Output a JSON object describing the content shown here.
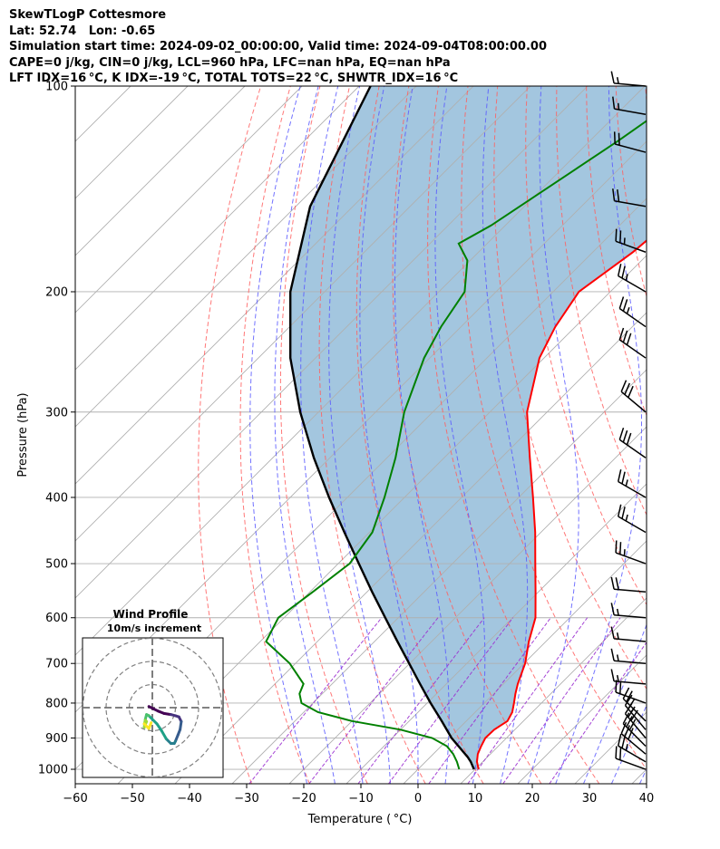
{
  "header": {
    "line1": "SkewTLogP Cottesmore",
    "line2": "Lat: 52.74   Lon: -0.65",
    "line3": "Simulation start time: 2024-09-02_00:00:00, Valid time: 2024-09-04T08:00:00.00",
    "line4": "CAPE=0 j/kg, CIN=0 j/kg, LCL=960 hPa, LFC=nan hPa, EQ=nan hPa",
    "line5": "LFT IDX=16 °C, K IDX=-19 °C, TOTAL TOTS=22 °C, SHWTR_IDX=16 °C"
  },
  "chart_data": {
    "type": "skewt-logp",
    "xlabel": "Temperature ( °C)",
    "ylabel": "Pressure (hPa)",
    "xlim": [
      -60,
      40
    ],
    "ylim": [
      1050,
      100
    ],
    "x_ticks": [
      -60,
      -50,
      -40,
      -30,
      -20,
      -10,
      0,
      10,
      20,
      30,
      40
    ],
    "x_tick_labels": [
      "−60",
      "−50",
      "−40",
      "−30",
      "−20",
      "−10",
      "0",
      "10",
      "20",
      "30",
      "40"
    ],
    "p_ticks": [
      1000,
      900,
      800,
      700,
      600,
      500,
      400,
      300,
      200,
      100
    ],
    "grid": true,
    "colors": {
      "temperature": "#ff0000",
      "dewpoint": "#008000",
      "parcel": "#000000",
      "cape_fill": "#a3c6df",
      "dry_adiabat": "#ff6060",
      "moist_adiabat": "#5a5aff",
      "mixing_ratio": "#9b30d0",
      "isotherm": "#b0b0b0",
      "grid": "#b0b0b0"
    },
    "temperature": {
      "p": [
        1000,
        975,
        950,
        925,
        900,
        875,
        850,
        825,
        800,
        775,
        750,
        700,
        650,
        600,
        550,
        500,
        450,
        400,
        350,
        300,
        250,
        225,
        200,
        175,
        150,
        140,
        130,
        120,
        110,
        100
      ],
      "t": [
        10.6,
        9.0,
        7.8,
        7.0,
        6.3,
        6.4,
        7.2,
        6.5,
        5.2,
        3.8,
        2.5,
        0.2,
        -3.0,
        -6.0,
        -10.5,
        -15.5,
        -21.0,
        -27.5,
        -35.0,
        -43.5,
        -50.8,
        -53.5,
        -55.5,
        -53.0,
        -51.5,
        -51.5,
        -50.0,
        -49.5,
        -51.0,
        -53.5
      ]
    },
    "dewpoint": {
      "p": [
        1000,
        975,
        950,
        925,
        900,
        875,
        850,
        825,
        800,
        775,
        750,
        700,
        650,
        600,
        550,
        500,
        450,
        400,
        350,
        300,
        250,
        225,
        200,
        180,
        170,
        160,
        140,
        120,
        100
      ],
      "td": [
        7.2,
        5.5,
        3.5,
        1.0,
        -3.0,
        -10.0,
        -20.0,
        -27.5,
        -32.0,
        -34.0,
        -35.0,
        -41.0,
        -49.0,
        -51.0,
        -49.5,
        -48.0,
        -49.5,
        -53.5,
        -58.5,
        -65.0,
        -71.0,
        -73.5,
        -75.5,
        -80.5,
        -85.0,
        -82.5,
        -79.0,
        -75.0,
        -71.0
      ]
    },
    "parcel": {
      "p": [
        1000,
        975,
        960,
        900,
        850,
        800,
        750,
        700,
        650,
        600,
        550,
        500,
        450,
        400,
        350,
        300,
        250,
        200,
        150,
        100
      ],
      "t": [
        9.8,
        7.9,
        6.6,
        0.4,
        -4.3,
        -9.4,
        -14.6,
        -20.1,
        -26.0,
        -32.3,
        -39.1,
        -46.4,
        -54.4,
        -63.2,
        -72.8,
        -83.2,
        -94.4,
        -106.0,
        -117.5,
        -128.0
      ]
    },
    "mixing_ratio_lines_gkg": [
      0.4,
      1,
      2,
      3,
      5,
      8,
      12,
      20
    ],
    "wind_barbs": {
      "p": [
        1000,
        975,
        950,
        925,
        900,
        875,
        850,
        800,
        750,
        700,
        650,
        600,
        550,
        500,
        450,
        400,
        350,
        300,
        250,
        225,
        200,
        175,
        150,
        125,
        110,
        100
      ],
      "direction_deg": [
        290,
        300,
        310,
        315,
        320,
        320,
        315,
        290,
        275,
        275,
        275,
        275,
        275,
        290,
        300,
        300,
        305,
        310,
        305,
        305,
        300,
        290,
        280,
        285,
        280,
        275
      ],
      "speed_kt": [
        20,
        25,
        30,
        30,
        30,
        25,
        20,
        20,
        15,
        15,
        15,
        15,
        20,
        25,
        25,
        25,
        30,
        30,
        30,
        25,
        25,
        25,
        20,
        20,
        15,
        15
      ]
    },
    "hodograph": {
      "title": "Wind Profile",
      "subtitle": "10m/s increment",
      "rings_ms": [
        10,
        20,
        30
      ],
      "u_ms": [
        -1.5,
        0.5,
        2.5,
        5.0,
        8.0,
        10.0,
        11.5,
        12.5,
        12.0,
        11.0,
        10.0,
        9.5,
        8.0,
        6.0,
        4.0,
        2.0,
        -0.5,
        -1.5,
        -2.5,
        -3.0,
        -3.5,
        -2.5,
        -3.0,
        -3.5,
        -2.0,
        -1.5,
        -0.5
      ],
      "v_ms": [
        0.5,
        -0.5,
        -1.5,
        -2.5,
        -3.0,
        -3.5,
        -4.0,
        -6.0,
        -9.5,
        -12.0,
        -14.5,
        -15.5,
        -15.5,
        -13.5,
        -10.0,
        -7.0,
        -4.5,
        -3.5,
        -3.0,
        -5.0,
        -8.5,
        -6.0,
        -5.5,
        -7.0,
        -8.5,
        -9.0,
        -6.5
      ]
    }
  }
}
